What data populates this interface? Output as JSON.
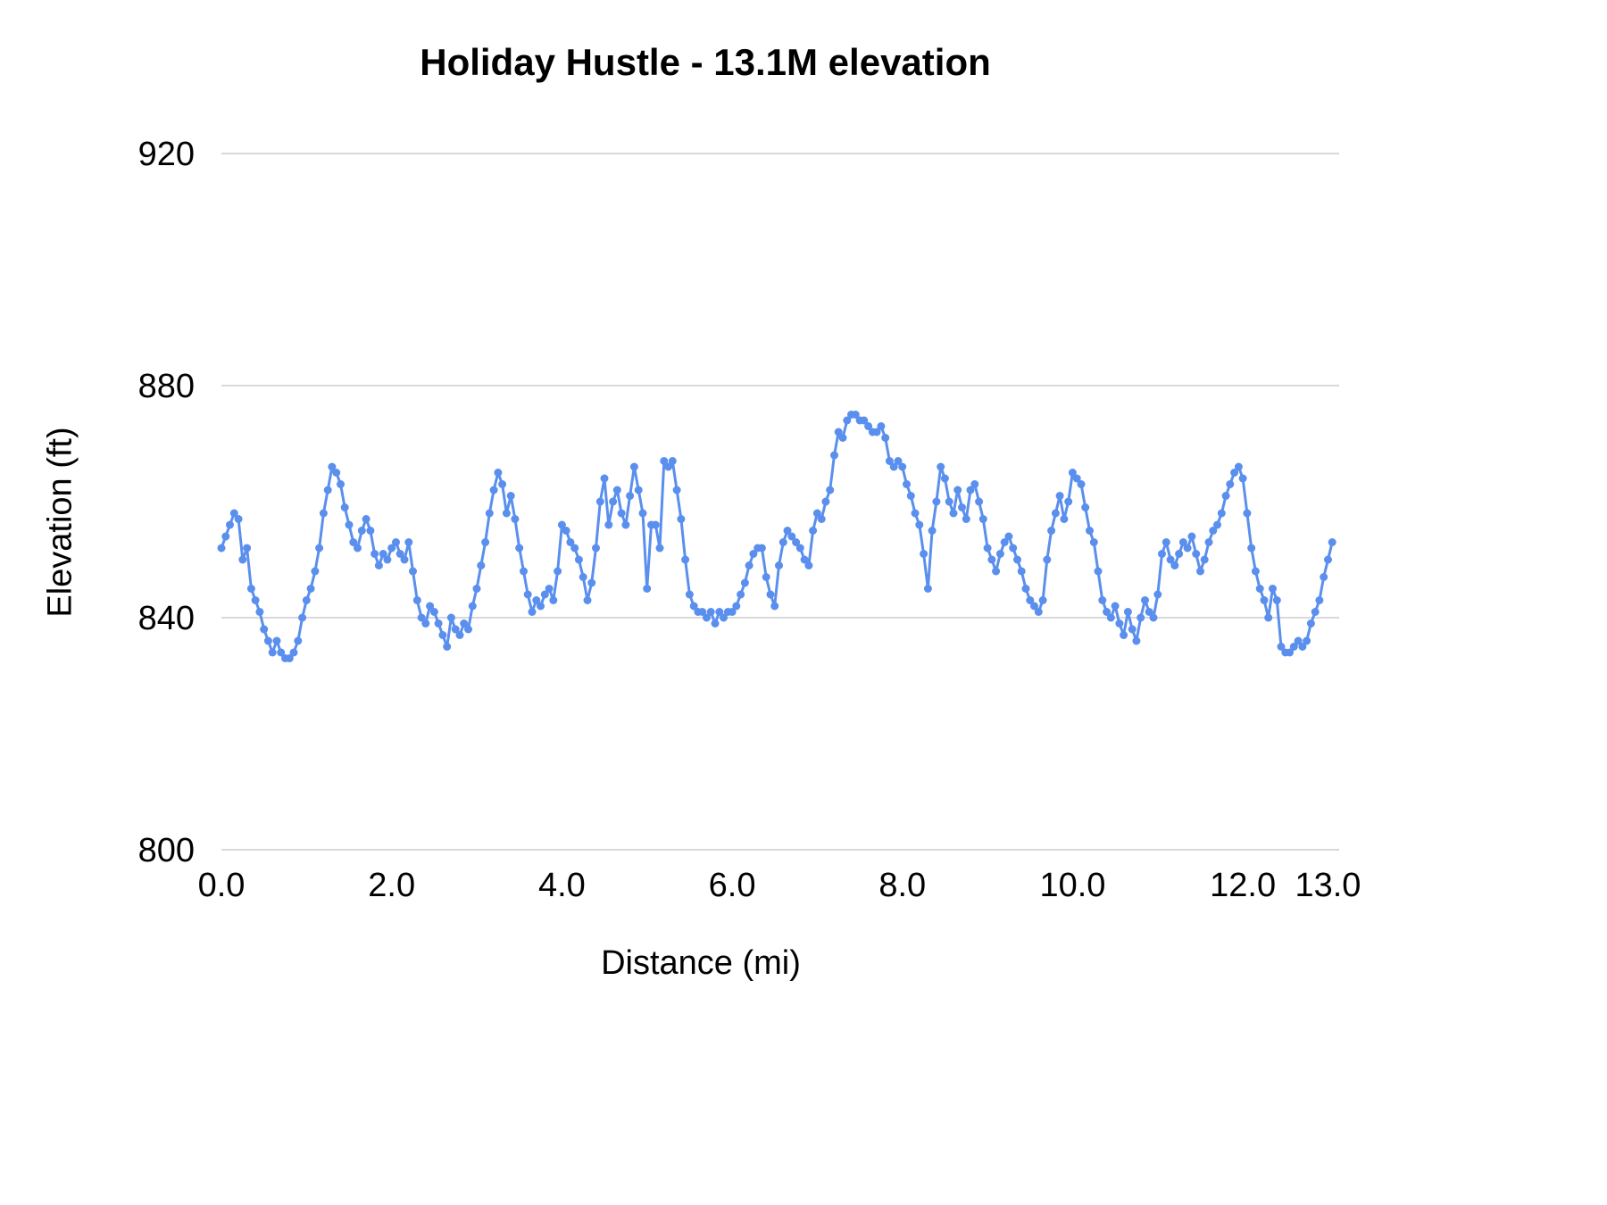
{
  "chart_data": {
    "type": "line",
    "title": "Holiday Hustle - 13.1M elevation",
    "xlabel": "Distance (mi)",
    "ylabel": "Elevation (ft)",
    "xlim": [
      0,
      13.1
    ],
    "ylim": [
      800,
      920
    ],
    "x_ticks": [
      0,
      2,
      4,
      6,
      8,
      10,
      12,
      13
    ],
    "x_tick_labels": [
      "0.0",
      "2.0",
      "4.0",
      "6.0",
      "8.0",
      "10.0",
      "12.0",
      "13.0"
    ],
    "y_ticks": [
      800,
      840,
      880,
      920
    ],
    "y_tick_labels": [
      "800",
      "840",
      "880",
      "920"
    ],
    "grid": true,
    "legend": "none",
    "line_color": "#5a8fee",
    "grid_color": "#d9d9d9",
    "text_color": "#000000",
    "point_radius": 4.5,
    "line_width": 3,
    "x_start": 0.0,
    "x_step": 0.05,
    "values": [
      852,
      854,
      856,
      858,
      857,
      850,
      852,
      845,
      843,
      841,
      838,
      836,
      834,
      836,
      834,
      833,
      833,
      834,
      836,
      840,
      843,
      845,
      848,
      852,
      858,
      862,
      866,
      865,
      863,
      859,
      856,
      853,
      852,
      855,
      857,
      855,
      851,
      849,
      851,
      850,
      852,
      853,
      851,
      850,
      853,
      848,
      843,
      840,
      839,
      842,
      841,
      839,
      837,
      835,
      840,
      838,
      837,
      839,
      838,
      842,
      845,
      849,
      853,
      858,
      862,
      865,
      863,
      858,
      861,
      857,
      852,
      848,
      844,
      841,
      843,
      842,
      844,
      845,
      843,
      848,
      856,
      855,
      853,
      852,
      850,
      847,
      843,
      846,
      852,
      860,
      864,
      856,
      860,
      862,
      858,
      856,
      861,
      866,
      862,
      858,
      845,
      856,
      856,
      852,
      867,
      866,
      867,
      862,
      857,
      850,
      844,
      842,
      841,
      841,
      840,
      841,
      839,
      841,
      840,
      841,
      841,
      842,
      844,
      846,
      849,
      851,
      852,
      852,
      847,
      844,
      842,
      849,
      853,
      855,
      854,
      853,
      852,
      850,
      849,
      855,
      858,
      857,
      860,
      862,
      868,
      872,
      871,
      874,
      875,
      875,
      874,
      874,
      873,
      872,
      872,
      873,
      871,
      867,
      866,
      867,
      866,
      863,
      861,
      858,
      856,
      851,
      845,
      855,
      860,
      866,
      864,
      860,
      858,
      862,
      859,
      857,
      862,
      863,
      860,
      857,
      852,
      850,
      848,
      851,
      853,
      854,
      852,
      850,
      848,
      845,
      843,
      842,
      841,
      843,
      850,
      855,
      858,
      861,
      857,
      860,
      865,
      864,
      863,
      859,
      855,
      853,
      848,
      843,
      841,
      840,
      842,
      839,
      837,
      841,
      838,
      836,
      840,
      843,
      841,
      840,
      844,
      851,
      853,
      850,
      849,
      851,
      853,
      852,
      854,
      851,
      848,
      850,
      853,
      855,
      856,
      858,
      861,
      863,
      865,
      866,
      864,
      858,
      852,
      848,
      845,
      843,
      840,
      845,
      843,
      835,
      834,
      834,
      835,
      836,
      835,
      836,
      839,
      841,
      843,
      847,
      850,
      853
    ]
  }
}
